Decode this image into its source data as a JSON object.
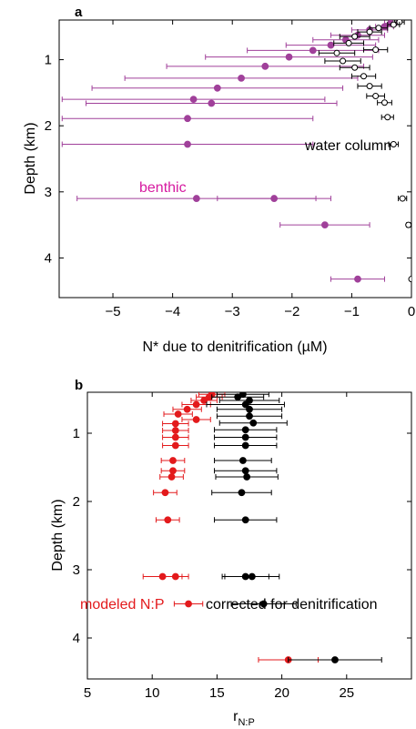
{
  "colors": {
    "benthic": "#a0409a",
    "water_column": "#000000",
    "modeled": "#e31a1c",
    "corrected": "#000000",
    "benthic_label": "#d61aa0",
    "modeled_label": "#e31a1c"
  },
  "chart_data": [
    {
      "type": "scatter",
      "panel": "a",
      "xlabel": "N* due to denitrification (µM)",
      "ylabel": "Depth (km)",
      "xlim": [
        -5.9,
        0
      ],
      "ylim": [
        4.6,
        0.4
      ],
      "y_inverted": true,
      "xticks": [
        -5,
        -4,
        -3,
        -2,
        -1,
        0
      ],
      "yticks": [
        1,
        2,
        3,
        4
      ],
      "annotations": [
        {
          "text": "water column",
          "color": "water_column"
        },
        {
          "text": "benthic",
          "color": "benthic_label"
        }
      ],
      "series": [
        {
          "name": "benthic",
          "marker": "filled",
          "color_key": "benthic",
          "points": [
            {
              "x": -0.35,
              "y": 0.45,
              "err": 0.1
            },
            {
              "x": -0.45,
              "y": 0.5,
              "err": 0.15
            },
            {
              "x": -0.7,
              "y": 0.55,
              "err": 0.3
            },
            {
              "x": -0.9,
              "y": 0.63,
              "err": 0.45
            },
            {
              "x": -1.1,
              "y": 0.7,
              "err": 0.55
            },
            {
              "x": -1.35,
              "y": 0.78,
              "err": 0.75
            },
            {
              "x": -1.65,
              "y": 0.86,
              "err": 1.1
            },
            {
              "x": -2.05,
              "y": 0.96,
              "err": 1.4
            },
            {
              "x": -2.45,
              "y": 1.1,
              "err": 1.65
            },
            {
              "x": -2.85,
              "y": 1.28,
              "err": 1.95
            },
            {
              "x": -3.25,
              "y": 1.43,
              "err": 2.1
            },
            {
              "x": -3.65,
              "y": 1.6,
              "err": 2.2
            },
            {
              "x": -3.35,
              "y": 1.66,
              "err": 2.1
            },
            {
              "x": -3.75,
              "y": 1.89,
              "err": 2.1
            },
            {
              "x": -3.75,
              "y": 2.28,
              "err": 2.1
            },
            {
              "x": -3.6,
              "y": 3.1,
              "err": 2.0
            },
            {
              "x": -2.3,
              "y": 3.1,
              "err": 0.95
            },
            {
              "x": -1.45,
              "y": 3.5,
              "err": 0.75
            },
            {
              "x": -0.9,
              "y": 4.32,
              "err": 0.45
            }
          ]
        },
        {
          "name": "water column",
          "marker": "open",
          "color_key": "water_column",
          "points": [
            {
              "x": -0.2,
              "y": 0.43,
              "err": 0.08
            },
            {
              "x": -0.3,
              "y": 0.47,
              "err": 0.1
            },
            {
              "x": -0.55,
              "y": 0.52,
              "err": 0.15
            },
            {
              "x": -0.7,
              "y": 0.58,
              "err": 0.2
            },
            {
              "x": -0.95,
              "y": 0.65,
              "err": 0.25
            },
            {
              "x": -1.05,
              "y": 0.75,
              "err": 0.25
            },
            {
              "x": -0.6,
              "y": 0.85,
              "err": 0.2
            },
            {
              "x": -1.25,
              "y": 0.9,
              "err": 0.3
            },
            {
              "x": -1.15,
              "y": 1.02,
              "err": 0.3
            },
            {
              "x": -0.95,
              "y": 1.12,
              "err": 0.25
            },
            {
              "x": -0.8,
              "y": 1.25,
              "err": 0.2
            },
            {
              "x": -0.7,
              "y": 1.4,
              "err": 0.2
            },
            {
              "x": -0.6,
              "y": 1.55,
              "err": 0.15
            },
            {
              "x": -0.45,
              "y": 1.65,
              "err": 0.12
            },
            {
              "x": -0.4,
              "y": 1.87,
              "err": 0.1
            },
            {
              "x": -0.3,
              "y": 2.28,
              "err": 0.08
            },
            {
              "x": -0.15,
              "y": 3.1,
              "err": 0.07
            },
            {
              "x": -0.05,
              "y": 3.5,
              "err": 0.03
            },
            {
              "x": 0,
              "y": 4.32,
              "err": 0.02
            }
          ]
        }
      ]
    },
    {
      "type": "scatter",
      "panel": "b",
      "xlabel": "r",
      "xlabel_sub": "N:P",
      "ylabel": "Depth (km)",
      "xlim": [
        5,
        30
      ],
      "ylim": [
        4.6,
        0.4
      ],
      "y_inverted": true,
      "xticks": [
        5,
        10,
        15,
        20,
        25
      ],
      "yticks": [
        1,
        2,
        3,
        4
      ],
      "annotations": [
        {
          "text": "modeled N:P",
          "color": "modeled_label"
        },
        {
          "text": "corrected for denitrification",
          "color": "corrected"
        }
      ],
      "series": [
        {
          "name": "modeled N:P",
          "marker": "filled",
          "color_key": "modeled",
          "points": [
            {
              "x": 14.6,
              "y": 0.43,
              "err": 1.0
            },
            {
              "x": 14.4,
              "y": 0.47,
              "err": 1.0
            },
            {
              "x": 14.0,
              "y": 0.52,
              "err": 1.0
            },
            {
              "x": 13.4,
              "y": 0.58,
              "err": 1.1
            },
            {
              "x": 12.7,
              "y": 0.65,
              "err": 1.1
            },
            {
              "x": 12.0,
              "y": 0.72,
              "err": 1.1
            },
            {
              "x": 13.4,
              "y": 0.8,
              "err": 1.1
            },
            {
              "x": 11.8,
              "y": 0.86,
              "err": 1.0
            },
            {
              "x": 11.8,
              "y": 0.96,
              "err": 1.0
            },
            {
              "x": 11.8,
              "y": 1.06,
              "err": 1.0
            },
            {
              "x": 11.8,
              "y": 1.18,
              "err": 1.0
            },
            {
              "x": 11.6,
              "y": 1.4,
              "err": 0.9
            },
            {
              "x": 11.6,
              "y": 1.55,
              "err": 0.9
            },
            {
              "x": 11.5,
              "y": 1.64,
              "err": 0.9
            },
            {
              "x": 11.0,
              "y": 1.87,
              "err": 0.9
            },
            {
              "x": 11.2,
              "y": 2.27,
              "err": 0.9
            },
            {
              "x": 10.8,
              "y": 3.1,
              "err": 1.5
            },
            {
              "x": 11.8,
              "y": 3.1,
              "err": 1.0
            },
            {
              "x": 12.8,
              "y": 3.5,
              "err": 1.1
            },
            {
              "x": 20.5,
              "y": 4.32,
              "err": 2.3
            }
          ]
        },
        {
          "name": "corrected for denitrification",
          "marker": "filled",
          "color_key": "corrected",
          "points": [
            {
              "x": 17.0,
              "y": 0.43,
              "err": 2.0
            },
            {
              "x": 16.6,
              "y": 0.47,
              "err": 2.0
            },
            {
              "x": 17.5,
              "y": 0.52,
              "err": 2.3
            },
            {
              "x": 17.2,
              "y": 0.58,
              "err": 3.0
            },
            {
              "x": 17.5,
              "y": 0.65,
              "err": 2.5
            },
            {
              "x": 17.5,
              "y": 0.75,
              "err": 2.5
            },
            {
              "x": 17.8,
              "y": 0.85,
              "err": 2.6
            },
            {
              "x": 17.2,
              "y": 0.95,
              "err": 2.4
            },
            {
              "x": 17.2,
              "y": 1.06,
              "err": 2.4
            },
            {
              "x": 17.2,
              "y": 1.18,
              "err": 2.4
            },
            {
              "x": 17.0,
              "y": 1.4,
              "err": 2.2
            },
            {
              "x": 17.2,
              "y": 1.55,
              "err": 2.4
            },
            {
              "x": 17.3,
              "y": 1.64,
              "err": 2.4
            },
            {
              "x": 16.9,
              "y": 1.87,
              "err": 2.3
            },
            {
              "x": 17.2,
              "y": 2.27,
              "err": 2.4
            },
            {
              "x": 17.2,
              "y": 3.1,
              "err": 1.8
            },
            {
              "x": 17.7,
              "y": 3.1,
              "err": 2.1
            },
            {
              "x": 18.6,
              "y": 3.5,
              "err": 2.5
            },
            {
              "x": 24.1,
              "y": 4.32,
              "err": 3.6
            }
          ]
        }
      ]
    }
  ]
}
